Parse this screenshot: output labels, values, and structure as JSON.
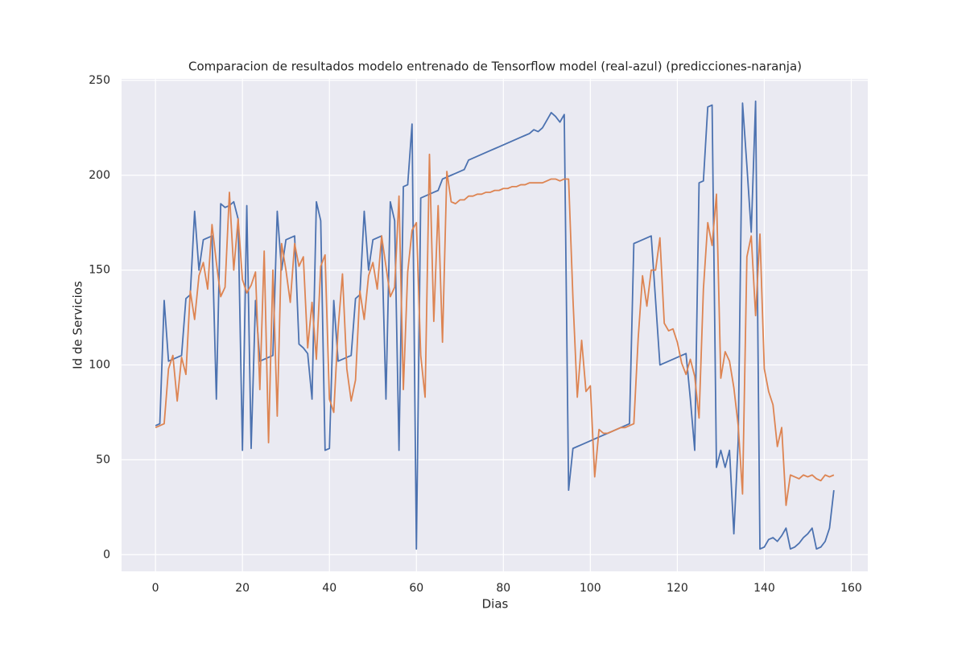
{
  "chart_data": {
    "type": "line",
    "title": "Comparacion de resultados modelo entrenado de Tensorflow model (real-azul) (predicciones-naranja)",
    "xlabel": "Dias",
    "ylabel": "Id de Servicios",
    "x": [
      0,
      1,
      2,
      3,
      4,
      5,
      6,
      7,
      8,
      9,
      10,
      11,
      12,
      13,
      14,
      15,
      16,
      17,
      18,
      19,
      20,
      21,
      22,
      23,
      24,
      25,
      26,
      27,
      28,
      29,
      30,
      31,
      32,
      33,
      34,
      35,
      36,
      37,
      38,
      39,
      40,
      41,
      42,
      43,
      44,
      45,
      46,
      47,
      48,
      49,
      50,
      51,
      52,
      53,
      54,
      55,
      56,
      57,
      58,
      59,
      60,
      61,
      62,
      63,
      64,
      65,
      66,
      67,
      68,
      69,
      70,
      71,
      72,
      73,
      74,
      75,
      76,
      77,
      78,
      79,
      80,
      81,
      82,
      83,
      84,
      85,
      86,
      87,
      88,
      89,
      90,
      91,
      92,
      93,
      94,
      95,
      96,
      97,
      98,
      99,
      100,
      101,
      102,
      103,
      104,
      105,
      106,
      107,
      108,
      109,
      110,
      111,
      112,
      113,
      114,
      115,
      116,
      117,
      118,
      119,
      120,
      121,
      122,
      123,
      124,
      125,
      126,
      127,
      128,
      129,
      130,
      131,
      132,
      133,
      134,
      135,
      136,
      137,
      138,
      139,
      140,
      141,
      142,
      143,
      144,
      145,
      146,
      147,
      148,
      149,
      150,
      151,
      152,
      153,
      154,
      155,
      156
    ],
    "series": [
      {
        "color": "#4c72b0",
        "values": [
          68,
          69,
          134,
          102,
          103,
          104,
          105,
          135,
          137,
          181,
          150,
          166,
          167,
          168,
          82,
          185,
          183,
          184,
          186,
          177,
          55,
          184,
          56,
          134,
          102,
          103,
          104,
          105,
          181,
          150,
          166,
          167,
          168,
          111,
          109,
          106,
          82,
          186,
          176,
          55,
          56,
          134,
          102,
          103,
          104,
          105,
          135,
          137,
          181,
          150,
          166,
          167,
          168,
          82,
          186,
          176,
          55,
          194,
          195,
          227,
          3,
          188,
          189,
          190,
          191,
          192,
          198,
          199,
          200,
          201,
          202,
          203,
          208,
          209,
          210,
          211,
          212,
          213,
          214,
          215,
          216,
          217,
          218,
          219,
          220,
          221,
          222,
          224,
          223,
          225,
          229,
          233,
          231,
          228,
          232,
          34,
          56,
          57,
          58,
          59,
          60,
          61,
          62,
          63,
          64,
          65,
          66,
          67,
          68,
          69,
          164,
          165,
          166,
          167,
          168,
          134,
          100,
          101,
          102,
          103,
          104,
          105,
          106,
          82,
          55,
          196,
          197,
          236,
          237,
          46,
          55,
          46,
          55,
          11,
          60,
          238,
          205,
          170,
          239,
          3,
          4,
          8,
          9,
          7,
          10,
          14,
          3,
          4,
          6,
          9,
          11,
          14,
          3,
          4,
          7,
          14,
          34
        ]
      },
      {
        "color": "#dd8452",
        "values": [
          67,
          68,
          69,
          98,
          105,
          81,
          104,
          95,
          139,
          124,
          147,
          154,
          140,
          174,
          154,
          136,
          141,
          191,
          150,
          177,
          145,
          138,
          142,
          149,
          87,
          160,
          59,
          150,
          73,
          164,
          150,
          133,
          164,
          152,
          157,
          109,
          133,
          103,
          152,
          158,
          82,
          75,
          119,
          148,
          98,
          81,
          92,
          139,
          124,
          147,
          154,
          140,
          168,
          152,
          136,
          141,
          189,
          87,
          149,
          171,
          175,
          105,
          83,
          211,
          123,
          184,
          112,
          202,
          186,
          185,
          187,
          187,
          189,
          189,
          190,
          190,
          191,
          191,
          192,
          192,
          193,
          193,
          194,
          194,
          195,
          195,
          196,
          196,
          196,
          196,
          197,
          198,
          198,
          197,
          198,
          198,
          135,
          83,
          113,
          86,
          89,
          41,
          66,
          64,
          64,
          65,
          66,
          67,
          67,
          68,
          69,
          114,
          147,
          131,
          150,
          150,
          167,
          122,
          118,
          119,
          112,
          101,
          95,
          103,
          94,
          72,
          140,
          175,
          163,
          190,
          93,
          107,
          102,
          88,
          68,
          32,
          157,
          168,
          126,
          169,
          98,
          86,
          79,
          57,
          67,
          26,
          42,
          41,
          40,
          42,
          41,
          42,
          40,
          39,
          42,
          41,
          42
        ]
      }
    ],
    "xlim": [
      -7.8,
      163.8
    ],
    "xticks": [
      0,
      20,
      40,
      60,
      80,
      100,
      120,
      140,
      160
    ],
    "ylim": [
      -8.8,
      250.8
    ],
    "yticks": [
      0,
      50,
      100,
      150,
      200,
      250
    ],
    "grid": true
  }
}
